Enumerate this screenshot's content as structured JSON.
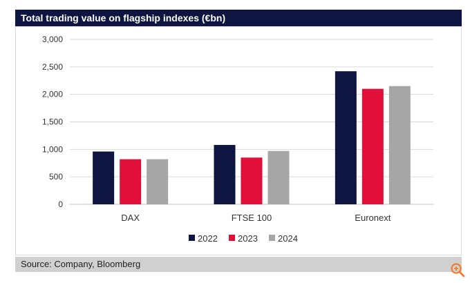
{
  "header": {
    "title": "Total trading value on flagship indexes (€bn)"
  },
  "footer": {
    "source": "Source: Company, Bloomberg"
  },
  "colors": {
    "title_bg": "#0e1540",
    "series_2022": "#0e1540",
    "series_2023": "#e0103a",
    "series_2024": "#a6a6a6",
    "zoom": "#f07b2c"
  },
  "icons": {
    "zoom": "zoom-in-icon"
  },
  "chart_data": {
    "type": "bar",
    "title": "Total trading value on flagship indexes (€bn)",
    "categories": [
      "DAX",
      "FTSE 100",
      "Euronext"
    ],
    "series": [
      {
        "name": "2022",
        "values": [
          960,
          1080,
          2420
        ],
        "color": "#0e1540"
      },
      {
        "name": "2023",
        "values": [
          820,
          850,
          2100
        ],
        "color": "#e0103a"
      },
      {
        "name": "2024",
        "values": [
          820,
          970,
          2150
        ],
        "color": "#a6a6a6"
      }
    ],
    "ylim": [
      0,
      3000
    ],
    "yticks": [
      "0",
      "500",
      "1,000",
      "1,500",
      "2,000",
      "2,500",
      "3,000"
    ],
    "ytick_values": [
      0,
      500,
      1000,
      1500,
      2000,
      2500,
      3000
    ],
    "grid": true,
    "legend": "bottom"
  }
}
